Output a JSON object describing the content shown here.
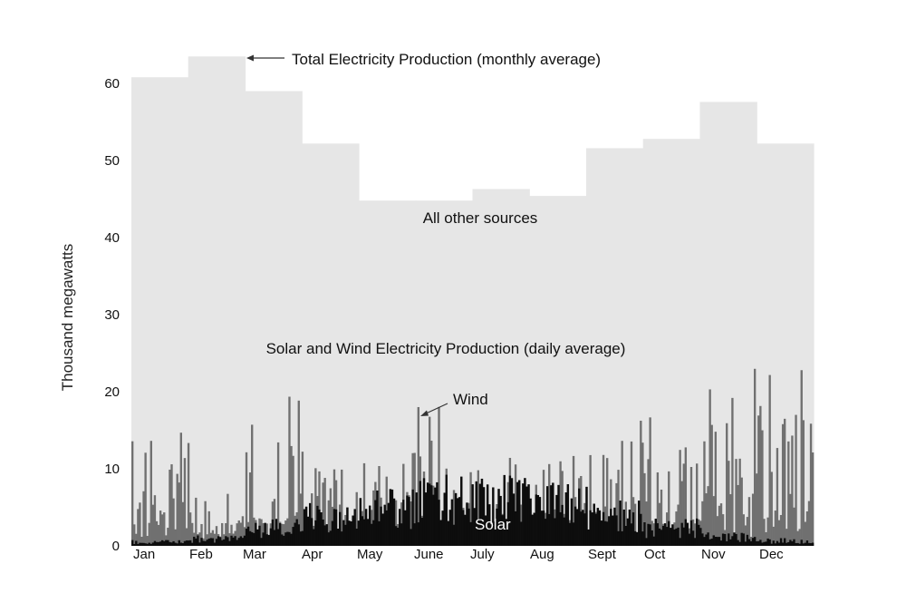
{
  "chart_data": {
    "type": "area",
    "xlabel": "",
    "ylabel": "Thousand megawatts",
    "ylim": [
      0,
      65
    ],
    "y_ticks": [
      "0",
      "10",
      "20",
      "30",
      "40",
      "50",
      "60"
    ],
    "categories": [
      "Jan",
      "Feb",
      "Mar",
      "Apr",
      "May",
      "June",
      "July",
      "Aug",
      "Sept",
      "Oct",
      "Nov",
      "Dec"
    ],
    "grid": false,
    "colors": {
      "total": "#e6e6e6",
      "wind": "#707070",
      "solar": "#0d0d0d",
      "text": "#111111"
    },
    "series": [
      {
        "name": "Total Electricity Production (monthly average)",
        "values": [
          60.8,
          63.5,
          59,
          52.2,
          44.8,
          44.8,
          46.3,
          45.4,
          51.6,
          52.8,
          57.6,
          52.2
        ]
      },
      {
        "name": "Wind",
        "values": [
          16.3,
          6.8,
          20.5,
          11.5,
          12.3,
          18.6,
          12.1,
          11.8,
          16.9,
          18.2,
          23.2,
          23.8
        ]
      },
      {
        "name": "Solar",
        "values": [
          0.6,
          1.1,
          2.8,
          4.6,
          6.1,
          7.4,
          7.9,
          6.9,
          4.8,
          2.9,
          1.4,
          0.8
        ]
      }
    ],
    "annotations": {
      "total": "Total Electricity Production (monthly average)",
      "other": "All other sources",
      "daily": "Solar and Wind Electricity Production (daily average)",
      "wind": "Wind",
      "solar": "Solar"
    }
  }
}
